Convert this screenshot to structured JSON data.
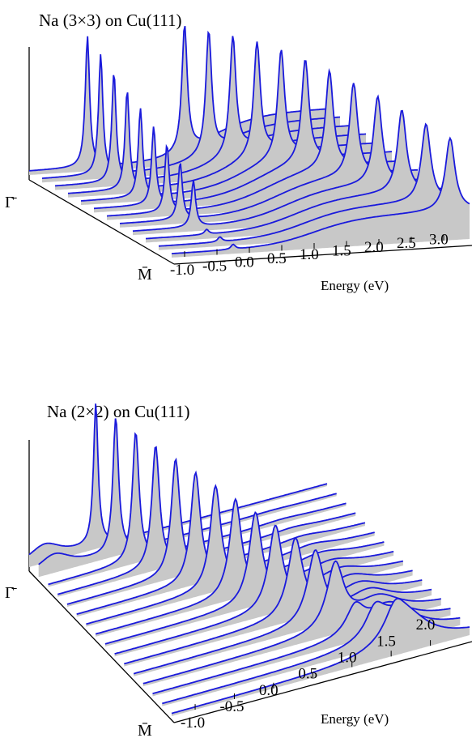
{
  "chart_data": [
    {
      "type": "area",
      "title": "Na (3×3) on Cu(111)",
      "xlabel": "Energy (eV)",
      "x_ticks": [
        "-1.0",
        "-0.5",
        "0.0",
        "0.5",
        "1.0",
        "1.5",
        "2.0",
        "2.5",
        "3.0"
      ],
      "xlim": [
        -1.2,
        3.4
      ],
      "k_labels": [
        "Γ̄",
        "M̄"
      ],
      "n_curves": 12,
      "grid": false,
      "line_color": "#1a1adc",
      "fill_color": "#c8c8c8"
    },
    {
      "type": "area",
      "title": "Na (2×2) on Cu(111)",
      "xlabel": "Energy (eV)",
      "x_ticks": [
        "-1.0",
        "-0.5",
        "0.0",
        "0.5",
        "1.0",
        "1.5",
        "2.0"
      ],
      "xlim": [
        -1.3,
        2.5
      ],
      "k_labels": [
        "Γ̄",
        "M̄"
      ],
      "n_curves": 16,
      "grid": false,
      "line_color": "#1a1adc",
      "fill_color": "#c8c8c8"
    }
  ]
}
